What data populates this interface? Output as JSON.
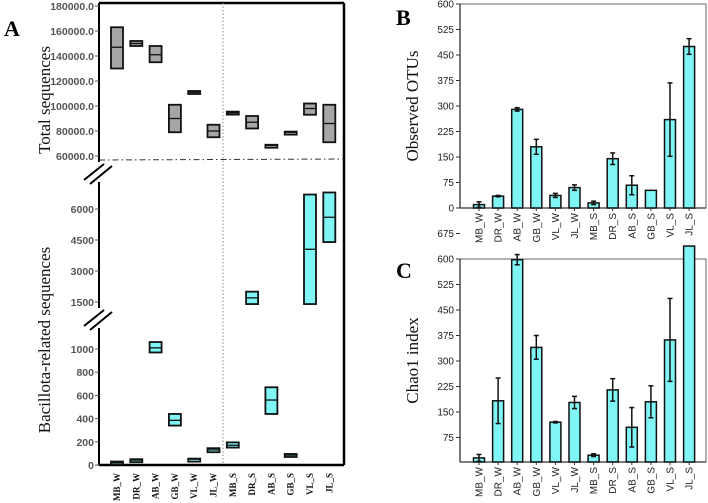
{
  "colors": {
    "box_gray": "#a6a6a6",
    "cyan": "#7ff5f5",
    "stroke": "#111111"
  },
  "chart_data": [
    {
      "panel": "A",
      "type": "box",
      "categories": [
        "MB_W",
        "DR_W",
        "AB_W",
        "GB_W",
        "VL_W",
        "JL_W",
        "MB_S",
        "DR_S",
        "AB_S",
        "GB_S",
        "VL_S",
        "JL_S"
      ],
      "top_axis": {
        "ylabel": "Total sequences",
        "ticks": [
          "60000.0",
          "80000.0",
          "100000.0",
          "120000.0",
          "140000.0",
          "160000.0",
          "180000.0"
        ],
        "tick_values": [
          60000,
          80000,
          100000,
          120000,
          140000,
          160000,
          180000
        ],
        "ylim": [
          57000,
          180000
        ],
        "series": {
          "name": "Total sequences",
          "min_median_max": [
            [
              130000,
              147000,
              163000
            ],
            [
              148000,
              150000,
              152000
            ],
            [
              135000,
              141000,
              148000
            ],
            [
              79000,
              90000,
              101000
            ],
            [
              110000,
              111000,
              112000
            ],
            [
              75000,
              80000,
              85000
            ],
            [
              93500,
              94500,
              95500
            ],
            [
              82000,
              87000,
              92000
            ],
            [
              68000,
              68500,
              69000
            ],
            [
              78500,
              79000,
              79500
            ],
            [
              93000,
              98000,
              102000
            ],
            [
              71000,
              86000,
              101000
            ]
          ]
        }
      },
      "bottom_axis": {
        "ylabel": "Bacillota-related sequences",
        "ticks_low": [
          "0",
          "200",
          "400",
          "600",
          "800",
          "1000"
        ],
        "tick_values_low": [
          0,
          200,
          400,
          600,
          800,
          1000
        ],
        "ticks_high": [
          "1500",
          "3000",
          "4500",
          "6000"
        ],
        "tick_values_high": [
          1500,
          3000,
          4500,
          6000
        ],
        "series": {
          "name": "Bacillota-related sequences",
          "min_median_max": [
            [
              10,
              20,
              30
            ],
            [
              35,
              42,
              50
            ],
            [
              970,
              1010,
              1060
            ],
            [
              340,
              385,
              440
            ],
            [
              45,
              50,
              55
            ],
            [
              110,
              130,
              145
            ],
            [
              150,
              170,
              195
            ],
            [
              1400,
              1700,
              2000
            ],
            [
              440,
              560,
              670
            ],
            [
              75,
              85,
              95
            ],
            [
              1400,
              4050,
              6700
            ],
            [
              4400,
              5600,
              6800
            ]
          ]
        }
      }
    },
    {
      "panel": "B",
      "type": "bar",
      "ylabel": "Observed OTUs",
      "categories": [
        "MB_W",
        "DR_W",
        "AB_W",
        "GB_W",
        "VL_W",
        "JL_W",
        "MB_S",
        "DR_S",
        "AB_S",
        "GB_S",
        "VL_S",
        "JL_S"
      ],
      "values": [
        10,
        35,
        290,
        180,
        37,
        60,
        15,
        145,
        67,
        52,
        260,
        475
      ],
      "errors": [
        8,
        2,
        5,
        22,
        6,
        8,
        5,
        17,
        28,
        0,
        108,
        23
      ],
      "ylim": [
        0,
        600
      ],
      "ticks": [
        "0",
        "75",
        "150",
        "225",
        "300",
        "375",
        "450",
        "525",
        "600"
      ],
      "tick_values": [
        0,
        75,
        150,
        225,
        300,
        375,
        450,
        525,
        600
      ]
    },
    {
      "panel": "C",
      "type": "bar",
      "ylabel": "Chao1 index",
      "categories": [
        "MB_W",
        "DR_W",
        "AB_W",
        "GB_W",
        "VL_W",
        "JL_W",
        "MB_S",
        "DR_S",
        "AB_S",
        "GB_S",
        "VL_S",
        "JL_S"
      ],
      "values": [
        15,
        183,
        598,
        340,
        120,
        178,
        23,
        215,
        105,
        180,
        362,
        638
      ],
      "errors": [
        10,
        67,
        15,
        35,
        2,
        18,
        4,
        33,
        58,
        47,
        122,
        0
      ],
      "ylim": [
        0,
        697
      ],
      "ticks": [
        "75",
        "150",
        "225",
        "300",
        "375",
        "450",
        "525",
        "600",
        "675"
      ],
      "tick_values": [
        75,
        150,
        225,
        300,
        375,
        450,
        525,
        600,
        675
      ]
    }
  ]
}
